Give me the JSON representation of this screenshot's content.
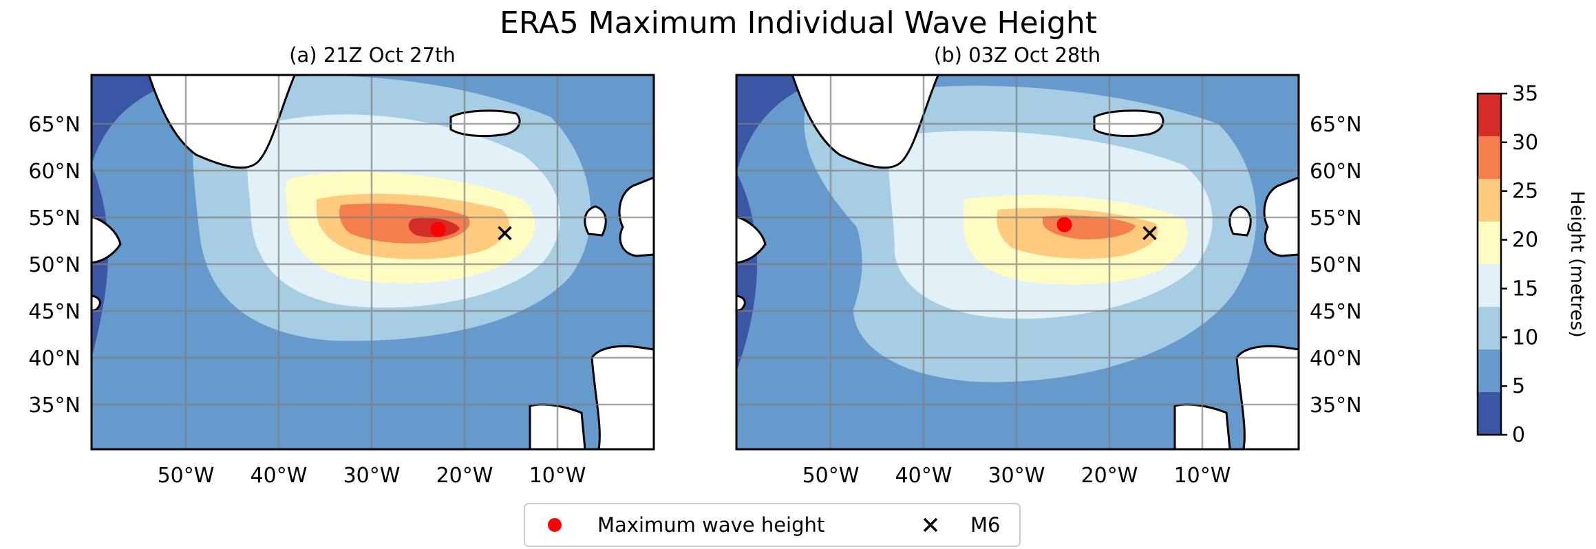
{
  "figure": {
    "title": "ERA5 Maximum Individual Wave Height"
  },
  "panels": [
    {
      "id": "a",
      "subtitle": "(a) 21Z Oct 27th",
      "max_point": {
        "lon": -23.0,
        "lat": 53.5
      },
      "m6_point": {
        "lon": -15.9,
        "lat": 53.1
      }
    },
    {
      "id": "b",
      "subtitle": "(b) 03Z Oct 28th",
      "max_point": {
        "lon": -25.0,
        "lat": 54.0
      },
      "m6_point": {
        "lon": -15.9,
        "lat": 53.1
      }
    }
  ],
  "map_extent": {
    "lon": [
      -60,
      0
    ],
    "lat": [
      30,
      70
    ]
  },
  "lon_ticks": [
    "50°W",
    "40°W",
    "30°W",
    "20°W",
    "10°W"
  ],
  "lat_ticks": [
    "65°N",
    "60°N",
    "55°N",
    "50°N",
    "45°N",
    "40°N",
    "35°N"
  ],
  "colorbar": {
    "label": "Height (metres)",
    "ticks": [
      "0",
      "5",
      "10",
      "15",
      "20",
      "25",
      "30",
      "35"
    ],
    "colors": [
      "#3a56a5",
      "#6699cc",
      "#a6cde3",
      "#e1f1f7",
      "#fefcc2",
      "#fdca7e",
      "#f57e4e",
      "#d42d27"
    ]
  },
  "legend": {
    "max_label": "Maximum wave height",
    "m6_label": "M6"
  },
  "colors": {
    "land": "#ffffff",
    "coast": "#000000",
    "grid": "#7f7f7f",
    "max_marker": "#ff0000"
  }
}
